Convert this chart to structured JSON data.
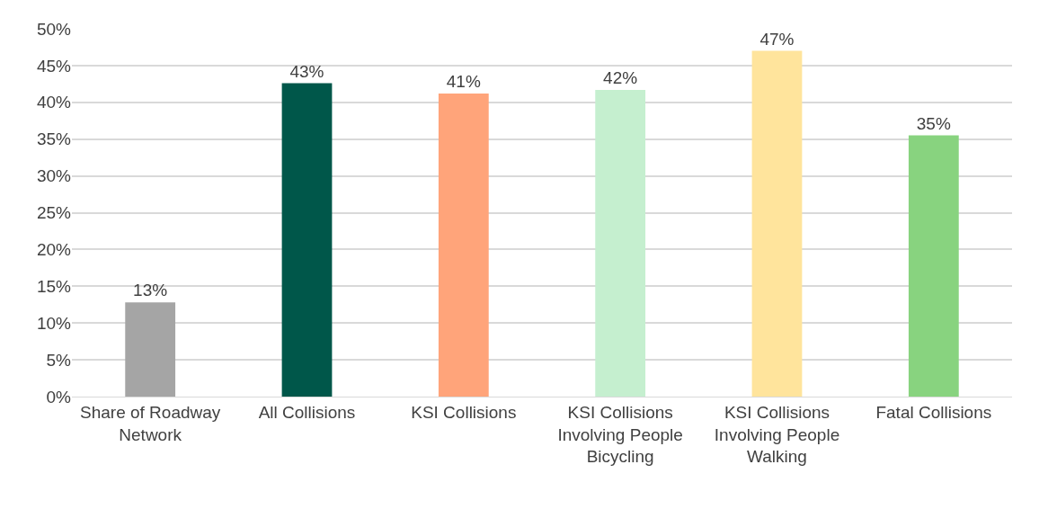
{
  "chart_data": {
    "type": "bar",
    "categories": [
      "Share of Roadway Network",
      "All Collisions",
      "KSI Collisions",
      "KSI Collisions Involving People Bicycling",
      "KSI Collisions Involving People Walking",
      "Fatal Collisions"
    ],
    "values": [
      12.8,
      42.6,
      41.2,
      41.7,
      47.0,
      35.5
    ],
    "value_labels": [
      "13%",
      "43%",
      "41%",
      "42%",
      "47%",
      "35%"
    ],
    "colors": [
      "#a5a5a5",
      "#00574a",
      "#ffa47a",
      "#c5efcf",
      "#ffe49c",
      "#88d37f"
    ],
    "ylim": [
      0,
      50
    ],
    "yticks": [
      {
        "value": 0,
        "label": "0%"
      },
      {
        "value": 5,
        "label": "5%"
      },
      {
        "value": 10,
        "label": "10%"
      },
      {
        "value": 15,
        "label": "15%"
      },
      {
        "value": 20,
        "label": "20%"
      },
      {
        "value": 25,
        "label": "25%"
      },
      {
        "value": 30,
        "label": "30%"
      },
      {
        "value": 35,
        "label": "35%"
      },
      {
        "value": 40,
        "label": "40%"
      },
      {
        "value": 45,
        "label": "45%"
      },
      {
        "value": 50,
        "label": "50%"
      }
    ],
    "grid": "y"
  }
}
